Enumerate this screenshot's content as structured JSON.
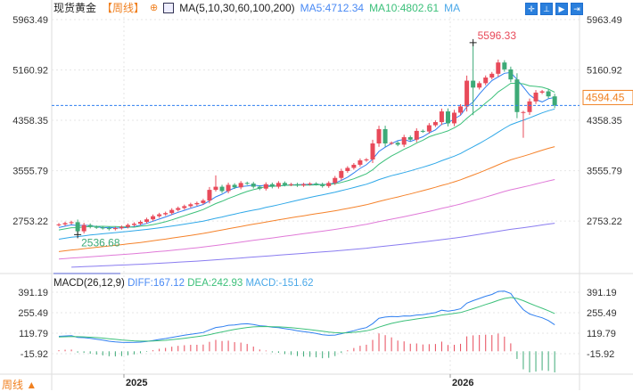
{
  "header": {
    "symbol": "现货黄金",
    "period": "【周线】",
    "ma_params": "MA(5,10,30,60,100,200)",
    "ma5": "MA5:4712.34",
    "ma10": "MA10:4802.61",
    "ma_more": "MA"
  },
  "toolbar": {
    "icons": [
      "crosshair-icon",
      "range-icon",
      "scroll-right-icon",
      "jump-end-icon"
    ]
  },
  "macd_header": {
    "params": "MACD(26,12,9)",
    "diff": "DIFF:167.12",
    "dea": "DEA:242.93",
    "macd": "MACD:-151.62"
  },
  "footer": {
    "period_label": "周线 ▲"
  },
  "colors": {
    "up": "#e84a5a",
    "down": "#3daa77",
    "ma5": "#2f7ff0",
    "ma10": "#3cc07a",
    "ma30": "#2fa8e8",
    "ma60": "#f5822a",
    "ma100": "#e07ad8",
    "ma200": "#8a7cf0",
    "last_price": "#f08020"
  },
  "chart_data": {
    "type": "candlestick",
    "period": "weekly",
    "x_tick_labels": [
      "2025",
      "2026"
    ],
    "price_axis_labels": [
      "5963.49",
      "5160.92",
      "4358.35",
      "3555.79",
      "2753.22"
    ],
    "price_range": [
      2300,
      5963.49
    ],
    "macd_axis_labels": [
      "391.19",
      "255.49",
      "119.79",
      "-15.92"
    ],
    "last_price": "4594.45",
    "max_label": "5596.33",
    "min_label": "2536.68",
    "grid": true,
    "closes": [
      2700,
      2720,
      2735,
      2590,
      2690,
      2660,
      2650,
      2640,
      2625,
      2640,
      2660,
      2690,
      2710,
      2740,
      2780,
      2830,
      2860,
      2880,
      2930,
      2960,
      2990,
      3020,
      3040,
      3080,
      3250,
      3300,
      3230,
      3330,
      3290,
      3360,
      3350,
      3300,
      3270,
      3340,
      3300,
      3360,
      3330,
      3340,
      3320,
      3340,
      3350,
      3340,
      3310,
      3360,
      3440,
      3550,
      3600,
      3650,
      3720,
      3735,
      3990,
      4218,
      3990,
      4000,
      3970,
      4090,
      4050,
      4190,
      4180,
      4280,
      4330,
      4500,
      4310,
      4480,
      4580,
      4990,
      4880,
      4950,
      5040,
      5100,
      5280,
      5170,
      5010,
      4490,
      4490,
      4660,
      4800,
      4820,
      4740,
      4594.45
    ]
  }
}
